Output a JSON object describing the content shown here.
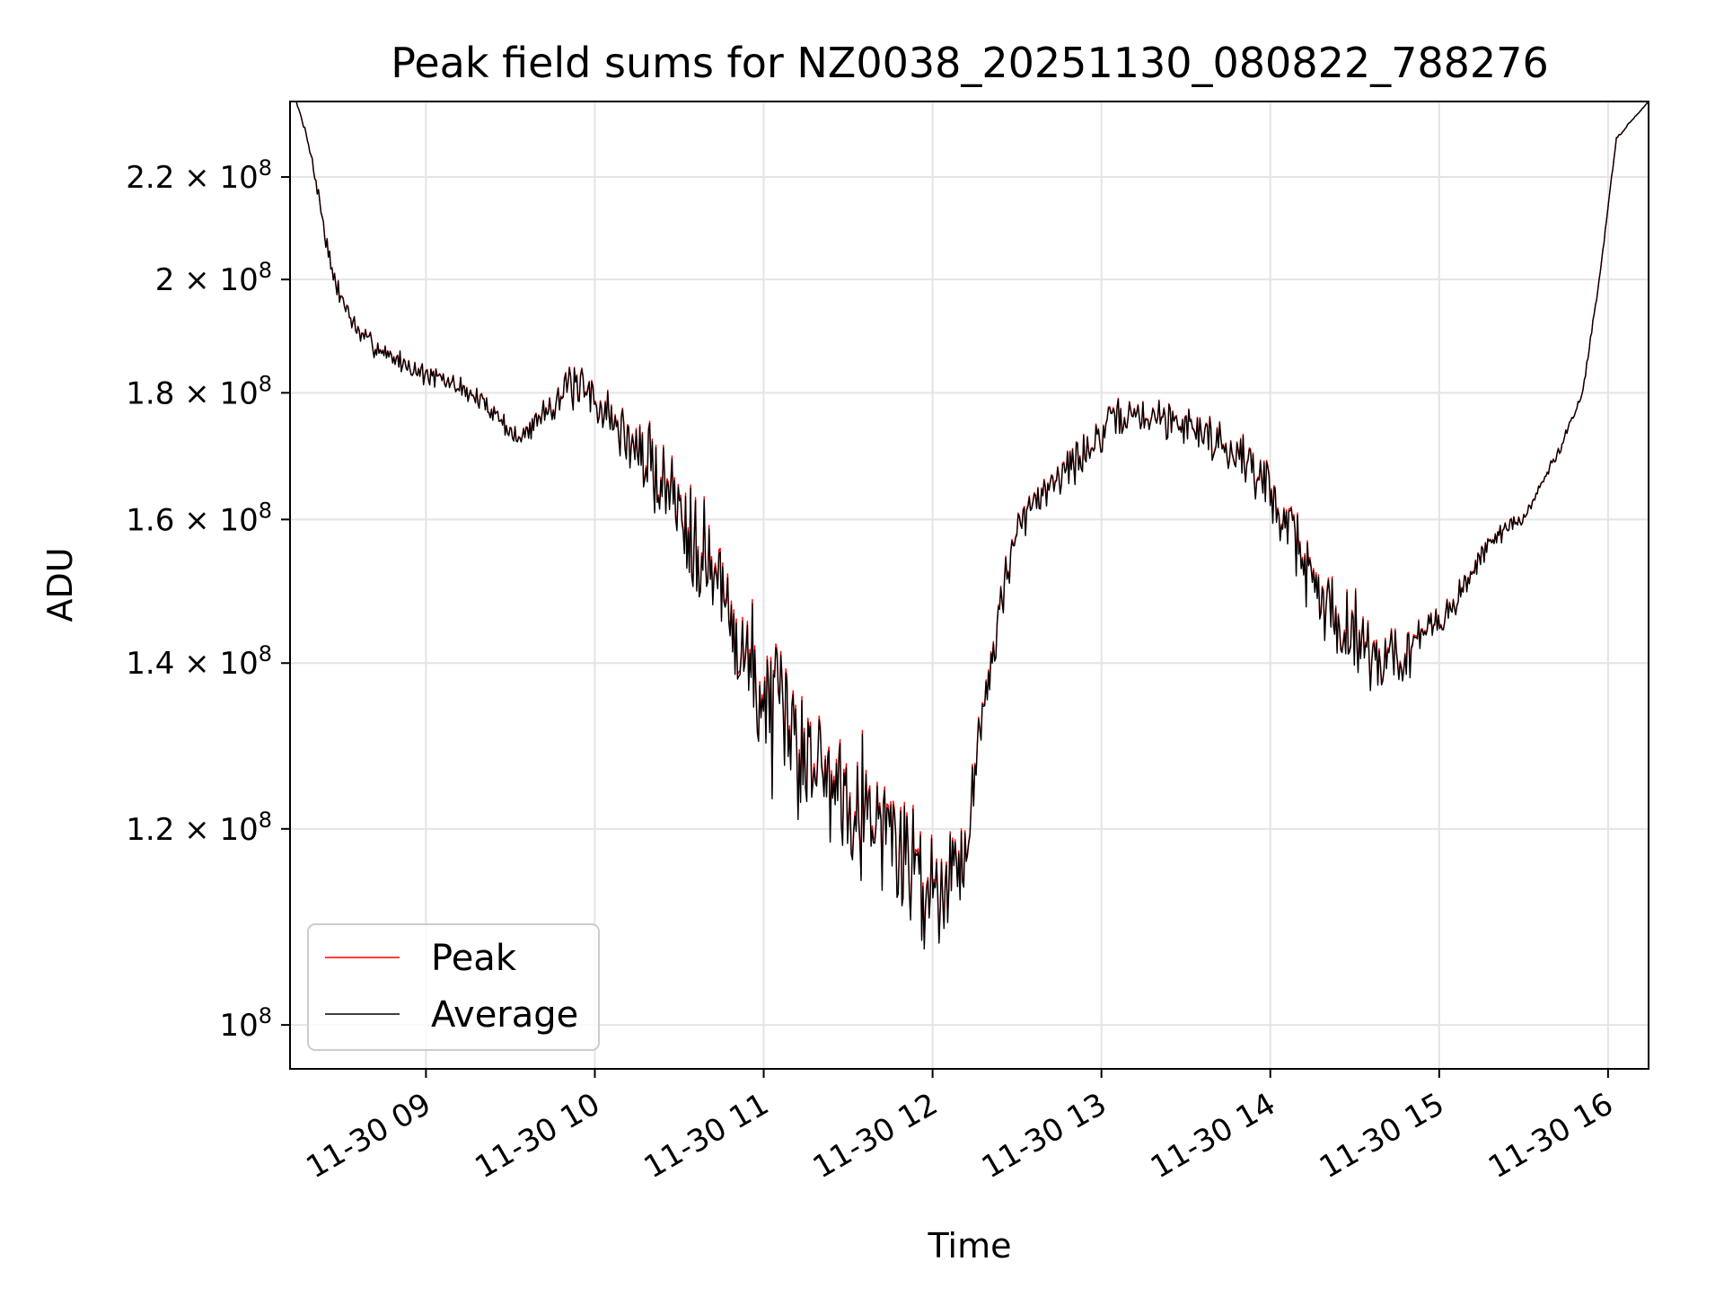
{
  "chart_data": {
    "type": "line",
    "title": "Peak field sums for NZ0038_20251130_080822_788276",
    "xlabel": "Time",
    "ylabel": "ADU",
    "yscale": "log",
    "ylim": [
      96000000,
      236000000
    ],
    "xlim_hours": [
      8.195,
      16.24
    ],
    "grid": true,
    "legend_position": "lower-left",
    "x_tick_labels": [
      {
        "hour": 9,
        "label": "11-30 09"
      },
      {
        "hour": 10,
        "label": "11-30 10"
      },
      {
        "hour": 11,
        "label": "11-30 11"
      },
      {
        "hour": 12,
        "label": "11-30 12"
      },
      {
        "hour": 13,
        "label": "11-30 13"
      },
      {
        "hour": 14,
        "label": "11-30 14"
      },
      {
        "hour": 15,
        "label": "11-30 15"
      },
      {
        "hour": 16,
        "label": "11-30 16"
      }
    ],
    "y_tick_labels": [
      {
        "value": 100000000,
        "mantissa": "10",
        "exponent": "8"
      },
      {
        "value": 120000000,
        "mantissa": "1.2 × 10",
        "exponent": "8"
      },
      {
        "value": 140000000,
        "mantissa": "1.4 × 10",
        "exponent": "8"
      },
      {
        "value": 160000000,
        "mantissa": "1.6 × 10",
        "exponent": "8"
      },
      {
        "value": 180000000,
        "mantissa": "1.8 × 10",
        "exponent": "8"
      },
      {
        "value": 200000000,
        "mantissa": "2 × 10",
        "exponent": "8"
      },
      {
        "value": 220000000,
        "mantissa": "2.2 × 10",
        "exponent": "8"
      }
    ],
    "series": [
      {
        "name": "Peak",
        "color": "#ff0000",
        "offset_fraction": 0.012,
        "trend_hours": [
          8.195,
          8.3,
          8.45,
          8.6,
          8.8,
          9.0,
          9.2,
          9.4,
          9.55,
          9.7,
          9.85,
          10.0,
          10.2,
          10.4,
          10.6,
          10.8,
          11.0,
          11.2,
          11.4,
          11.6,
          11.8,
          12.0,
          12.2,
          12.35,
          12.5,
          12.7,
          12.9,
          13.1,
          13.3,
          13.5,
          13.7,
          13.9,
          14.1,
          14.3,
          14.5,
          14.7,
          14.9,
          15.1,
          15.3,
          15.5,
          15.7,
          15.85,
          15.95,
          16.05,
          16.24
        ],
        "trend_values": [
          240000000,
          228000000,
          200000000,
          190000000,
          186000000,
          183000000,
          181000000,
          177000000,
          172000000,
          177000000,
          181000000,
          179000000,
          172000000,
          166000000,
          158000000,
          146000000,
          135000000,
          130000000,
          126000000,
          123000000,
          118000000,
          113000000,
          118000000,
          142000000,
          158000000,
          166000000,
          170000000,
          176000000,
          176000000,
          175000000,
          172000000,
          168000000,
          160000000,
          148000000,
          144000000,
          140000000,
          143000000,
          148000000,
          157000000,
          160000000,
          170000000,
          180000000,
          200000000,
          228000000,
          236000000
        ],
        "noise_hours": [
          8.195,
          8.4,
          9.5,
          10.1,
          10.5,
          10.8,
          11.5,
          12.0,
          12.25,
          12.6,
          13.2,
          13.8,
          14.2,
          14.6,
          15.0,
          15.3,
          15.7,
          16.24
        ],
        "noise_amplitude": [
          0.0,
          0.012,
          0.012,
          0.03,
          0.06,
          0.08,
          0.08,
          0.07,
          0.04,
          0.025,
          0.02,
          0.025,
          0.045,
          0.05,
          0.02,
          0.012,
          0.006,
          0.0
        ]
      },
      {
        "name": "Average",
        "color": "#000000",
        "offset_fraction": 0.0,
        "trend_hours": [
          8.195,
          8.3,
          8.45,
          8.6,
          8.8,
          9.0,
          9.2,
          9.4,
          9.55,
          9.7,
          9.85,
          10.0,
          10.2,
          10.4,
          10.6,
          10.8,
          11.0,
          11.2,
          11.4,
          11.6,
          11.8,
          12.0,
          12.2,
          12.35,
          12.5,
          12.7,
          12.9,
          13.1,
          13.3,
          13.5,
          13.7,
          13.9,
          14.1,
          14.3,
          14.5,
          14.7,
          14.9,
          15.1,
          15.3,
          15.5,
          15.7,
          15.85,
          15.95,
          16.05,
          16.24
        ],
        "trend_values": [
          240000000,
          228000000,
          200000000,
          190000000,
          186000000,
          183000000,
          181000000,
          177000000,
          172000000,
          177000000,
          181000000,
          179000000,
          172000000,
          166000000,
          158000000,
          146000000,
          135000000,
          130000000,
          126000000,
          123000000,
          118000000,
          113000000,
          118000000,
          142000000,
          158000000,
          166000000,
          170000000,
          176000000,
          176000000,
          175000000,
          172000000,
          168000000,
          160000000,
          148000000,
          144000000,
          140000000,
          143000000,
          148000000,
          157000000,
          160000000,
          170000000,
          180000000,
          200000000,
          228000000,
          236000000
        ],
        "noise_hours": [
          8.195,
          8.4,
          9.5,
          10.1,
          10.5,
          10.8,
          11.5,
          12.0,
          12.25,
          12.6,
          13.2,
          13.8,
          14.2,
          14.6,
          15.0,
          15.3,
          15.7,
          16.24
        ],
        "noise_amplitude": [
          0.0,
          0.012,
          0.012,
          0.03,
          0.06,
          0.08,
          0.08,
          0.07,
          0.04,
          0.025,
          0.02,
          0.025,
          0.045,
          0.05,
          0.02,
          0.012,
          0.006,
          0.0
        ]
      }
    ]
  }
}
